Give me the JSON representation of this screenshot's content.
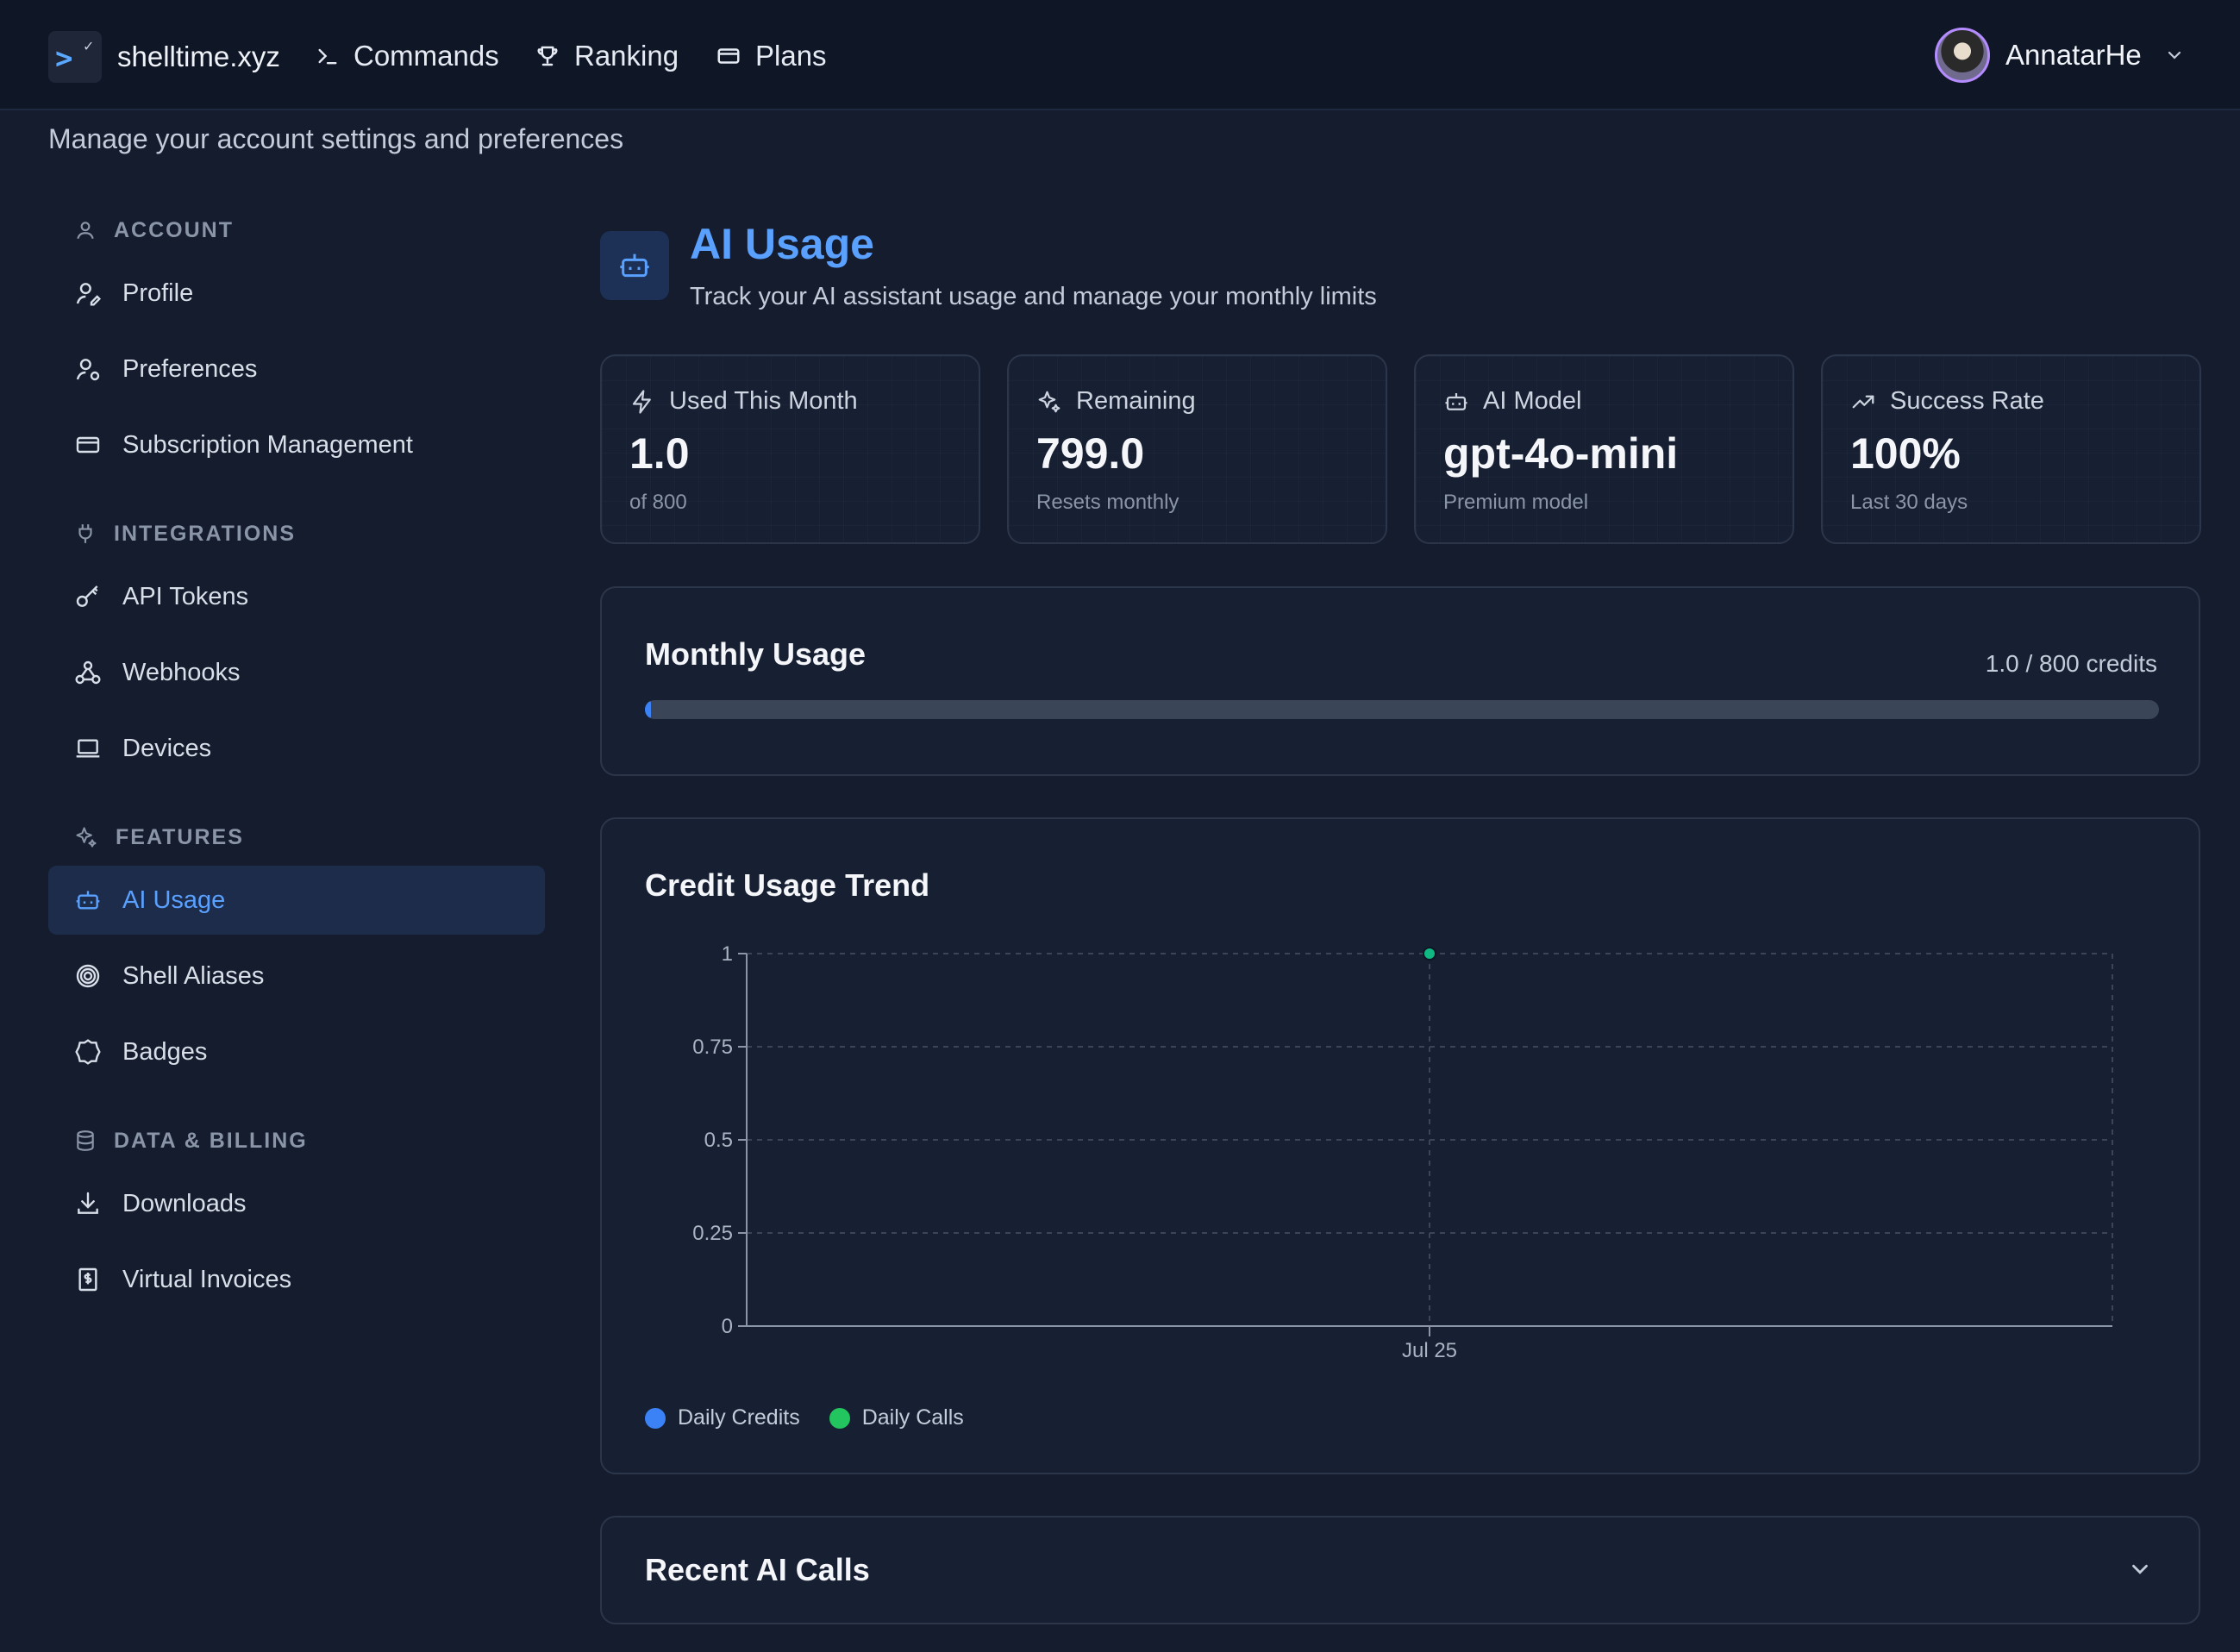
{
  "nav": {
    "brand": "shelltime.xyz",
    "items": [
      {
        "label": "Commands",
        "icon": "terminal-icon"
      },
      {
        "label": "Ranking",
        "icon": "trophy-icon"
      },
      {
        "label": "Plans",
        "icon": "credit-card-icon"
      }
    ],
    "user": "AnnatarHe"
  },
  "page_subtitle": "Manage your account settings and preferences",
  "sidebar": {
    "groups": [
      {
        "label": "ACCOUNT",
        "items": [
          "Profile",
          "Preferences",
          "Subscription Management"
        ]
      },
      {
        "label": "INTEGRATIONS",
        "items": [
          "API Tokens",
          "Webhooks",
          "Devices"
        ]
      },
      {
        "label": "FEATURES",
        "items": [
          "AI Usage",
          "Shell Aliases",
          "Badges"
        ]
      },
      {
        "label": "DATA & BILLING",
        "items": [
          "Downloads",
          "Virtual Invoices"
        ]
      }
    ],
    "active": "AI Usage"
  },
  "header": {
    "title": "AI Usage",
    "description": "Track your AI assistant usage and manage your monthly limits"
  },
  "stats": [
    {
      "label": "Used This Month",
      "value": "1.0",
      "sub": "of 800",
      "icon": "bolt-icon"
    },
    {
      "label": "Remaining",
      "value": "799.0",
      "sub": "Resets monthly",
      "icon": "sparkles-icon"
    },
    {
      "label": "AI Model",
      "value": "gpt-4o-mini",
      "sub": "Premium model",
      "icon": "bot-icon"
    },
    {
      "label": "Success Rate",
      "value": "100%",
      "sub": "Last 30 days",
      "icon": "trending-up-icon"
    }
  ],
  "monthly_usage": {
    "title": "Monthly Usage",
    "count_label": "1.0 / 800 credits",
    "used": 1.0,
    "limit": 800
  },
  "trend": {
    "title": "Credit Usage Trend"
  },
  "chart_data": {
    "type": "line",
    "title": "Credit Usage Trend",
    "categories": [
      "Jul 25"
    ],
    "series": [
      {
        "name": "Daily Credits",
        "values": [
          1
        ],
        "color": "#3b82f6"
      },
      {
        "name": "Daily Calls",
        "values": [
          1
        ],
        "color": "#10b981"
      }
    ],
    "y_ticks": [
      "0",
      "0.25",
      "0.5",
      "0.75",
      "1"
    ],
    "ylim": [
      0,
      1
    ],
    "grid": true,
    "legend": "bottom-left"
  },
  "recent": {
    "title": "Recent AI Calls"
  },
  "colors": {
    "accent": "#5aa0ff",
    "background": "#141c2e",
    "card": "#172033"
  }
}
